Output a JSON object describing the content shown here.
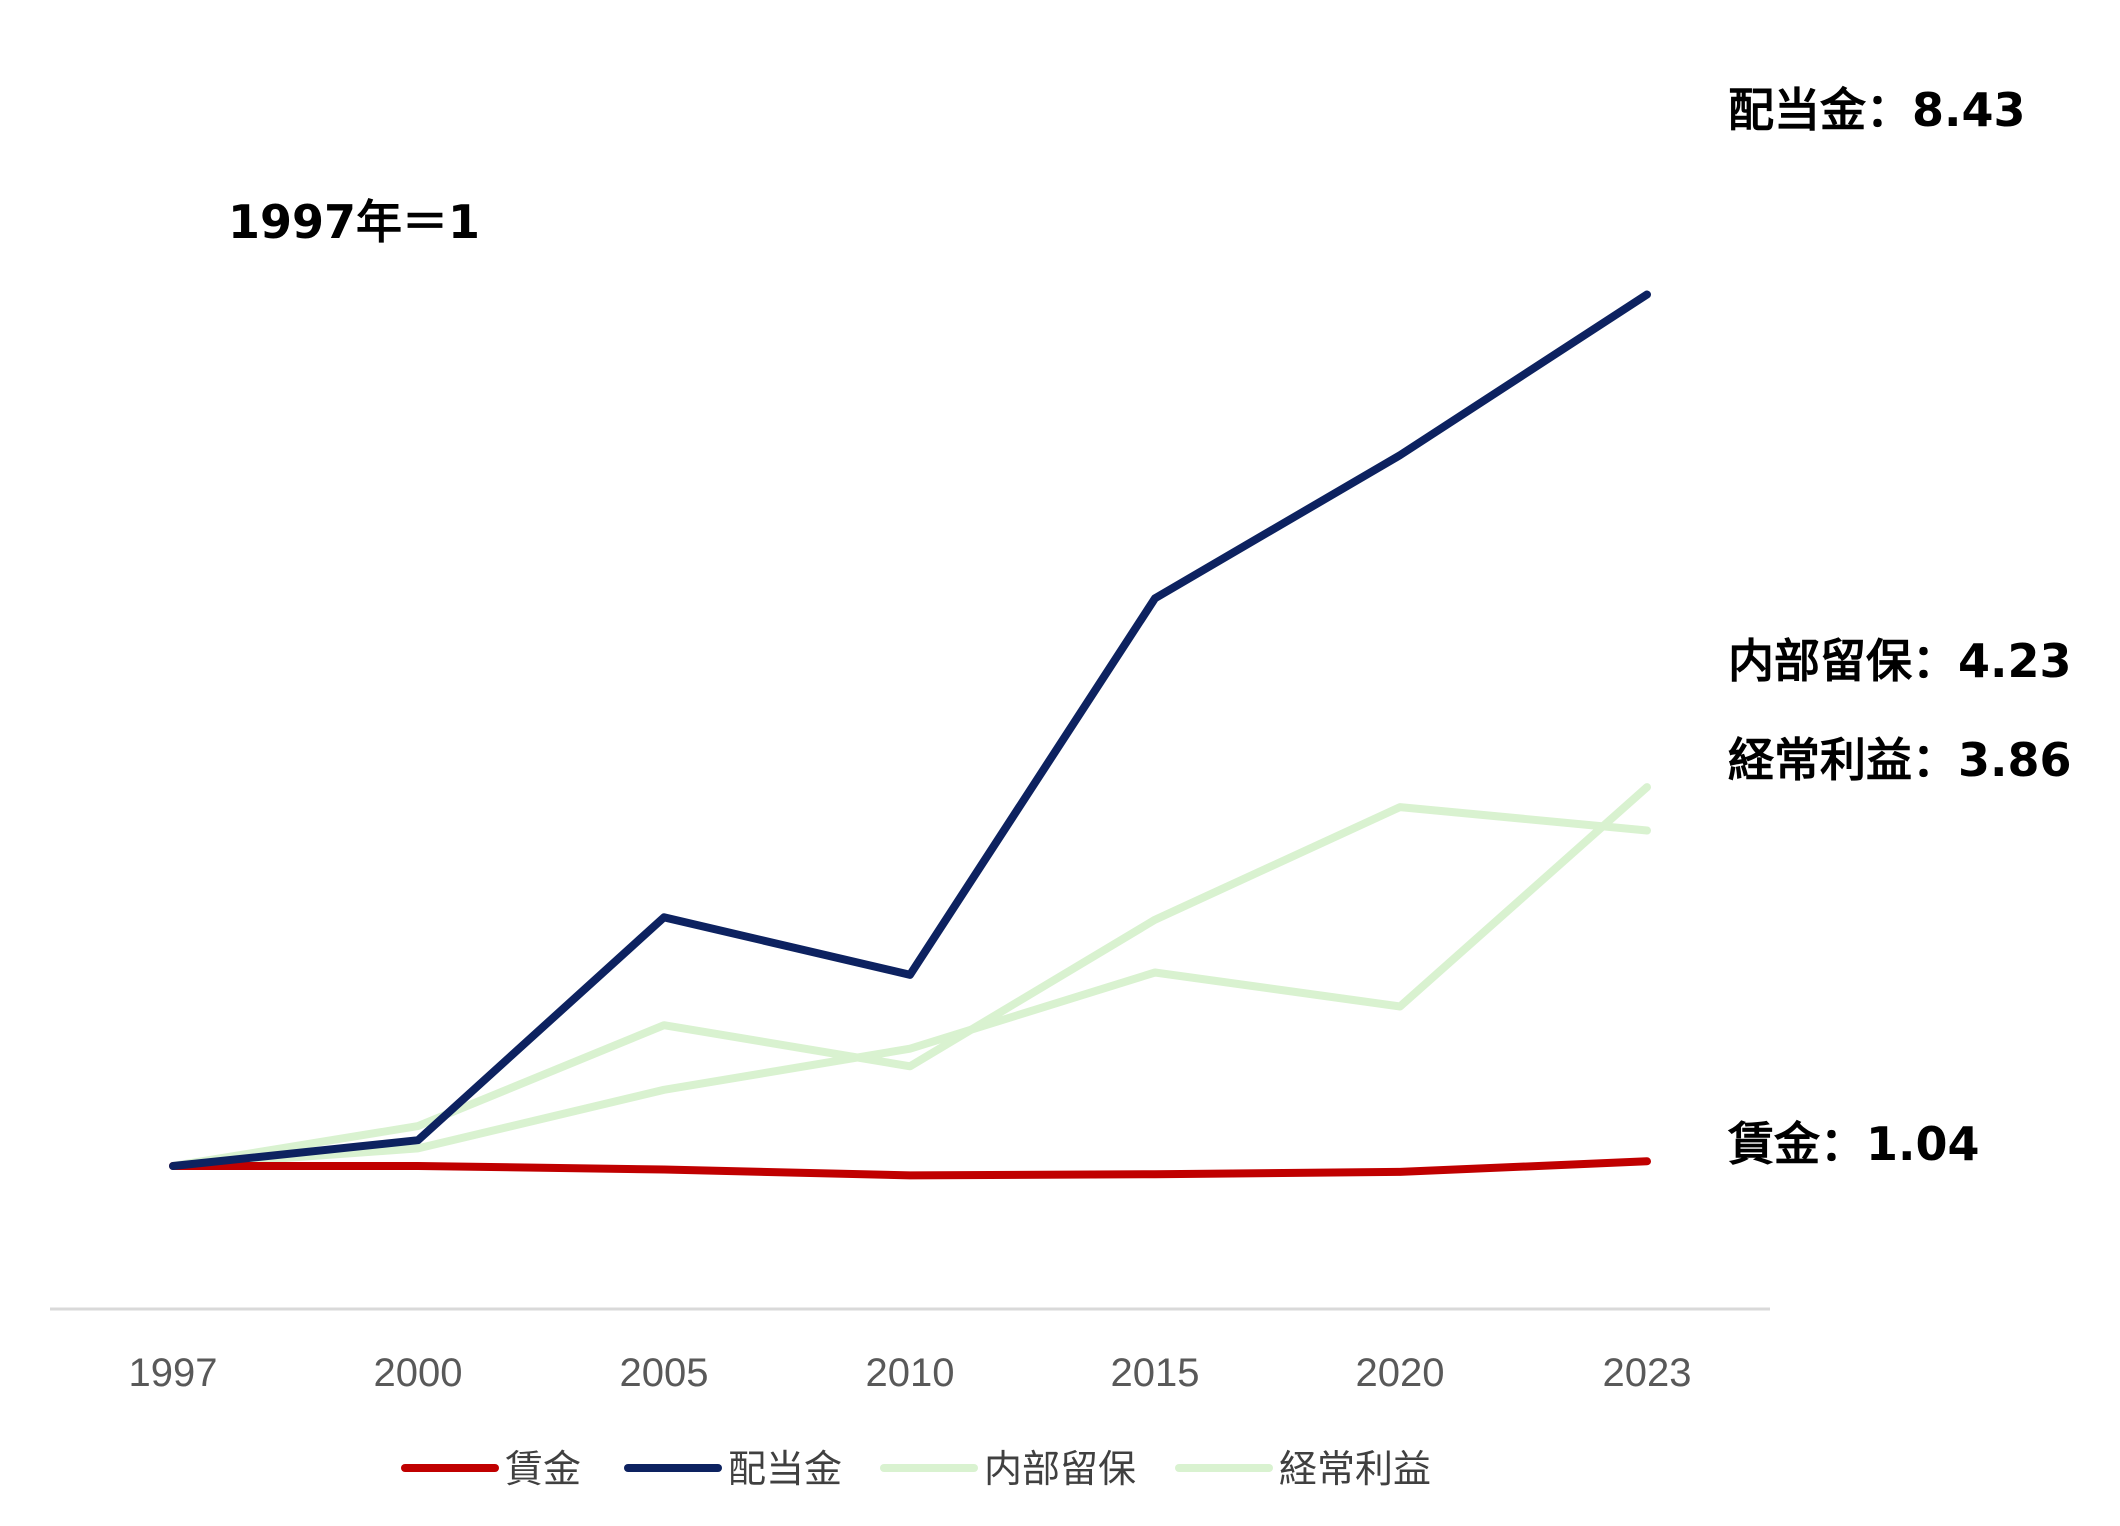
{
  "chart_data": {
    "type": "line",
    "x": [
      "1997",
      "2000",
      "2005",
      "2010",
      "2015",
      "2020",
      "2023"
    ],
    "ylim": [
      0,
      9.3
    ],
    "grid": false,
    "legend_position": "bottom",
    "baseline_note": "1997年＝1",
    "series": [
      {
        "name": "賃金",
        "color": "#c00000",
        "values": [
          1.0,
          1.0,
          0.97,
          0.92,
          0.93,
          0.95,
          1.04
        ],
        "end_label": "賃金：1.04"
      },
      {
        "name": "配当金",
        "color": "#0d2260",
        "values": [
          1.0,
          1.22,
          3.12,
          2.63,
          5.84,
          7.06,
          8.43
        ],
        "end_label": "配当金：8.43"
      },
      {
        "name": "内部留保",
        "color": "#d9f2d0",
        "values": [
          1.0,
          1.15,
          1.65,
          2.0,
          2.65,
          2.36,
          4.23
        ],
        "end_label": "内部留保：4.23"
      },
      {
        "name": "経常利益",
        "color": "#d9f2d0",
        "values": [
          1.0,
          1.34,
          2.2,
          1.85,
          3.1,
          4.06,
          3.86
        ],
        "end_label": "経常利益：3.86"
      }
    ]
  }
}
